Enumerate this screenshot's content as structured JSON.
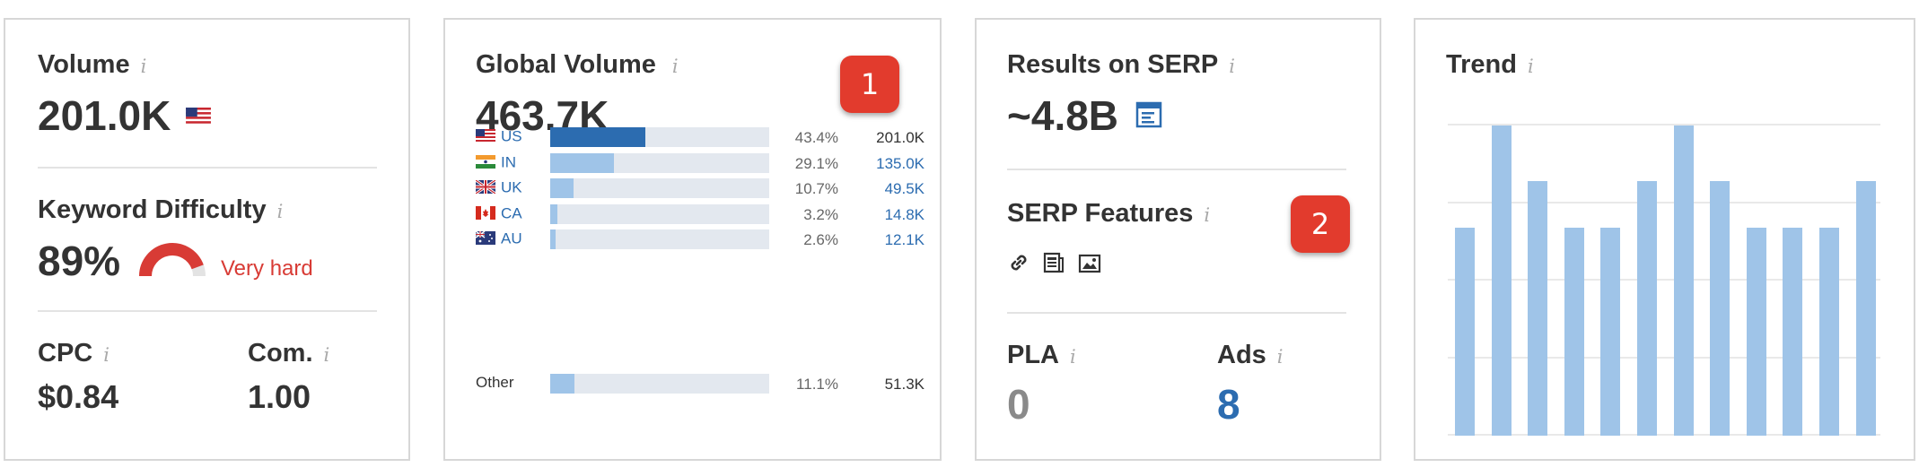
{
  "volume_card": {
    "title": "Volume",
    "value": "201.0K",
    "flag_icon": "us-flag-icon",
    "kd_title": "Keyword Difficulty",
    "kd_value": "89%",
    "kd_label": "Very hard",
    "kd_level": 0.89,
    "cpc_title": "CPC",
    "cpc_value": "$0.84",
    "com_title": "Com.",
    "com_value": "1.00"
  },
  "global_card": {
    "title": "Global Volume",
    "value": "463.7K",
    "badge": "1",
    "countries": [
      {
        "code": "US",
        "flag": "us-flag-icon",
        "share": 0.434,
        "pct": "43.4%",
        "value": "201.0K",
        "highlight": true
      },
      {
        "code": "IN",
        "flag": "in-flag-icon",
        "share": 0.291,
        "pct": "29.1%",
        "value": "135.0K",
        "highlight": false
      },
      {
        "code": "UK",
        "flag": "uk-flag-icon",
        "share": 0.107,
        "pct": "10.7%",
        "value": "49.5K",
        "highlight": false
      },
      {
        "code": "CA",
        "flag": "ca-flag-icon",
        "share": 0.032,
        "pct": "3.2%",
        "value": "14.8K",
        "highlight": false
      },
      {
        "code": "AU",
        "flag": "au-flag-icon",
        "share": 0.026,
        "pct": "2.6%",
        "value": "12.1K",
        "highlight": false
      }
    ],
    "other": {
      "label": "Other",
      "share": 0.111,
      "pct": "11.1%",
      "value": "51.3K"
    }
  },
  "serp_card": {
    "title": "Results on SERP",
    "value": "~4.8B",
    "features_title": "SERP Features",
    "badge": "2",
    "feature_icons": [
      "link-icon",
      "news-icon",
      "image-icon"
    ],
    "pla_title": "PLA",
    "pla_value": "0",
    "ads_title": "Ads",
    "ads_value": "8"
  },
  "trend_card": {
    "title": "Trend",
    "chart_data": {
      "type": "bar",
      "values": [
        0.67,
        1.0,
        0.82,
        0.67,
        0.67,
        0.82,
        1.0,
        0.82,
        0.67,
        0.67,
        0.67,
        0.82
      ],
      "ylim": [
        0,
        1
      ],
      "grid": true
    }
  },
  "colors": {
    "accent_blue": "#2c6cb0",
    "bar_blue": "#9fc4e8",
    "hard_red": "#d83b35",
    "badge_red": "#e23b2d"
  },
  "info_glyph": "i"
}
